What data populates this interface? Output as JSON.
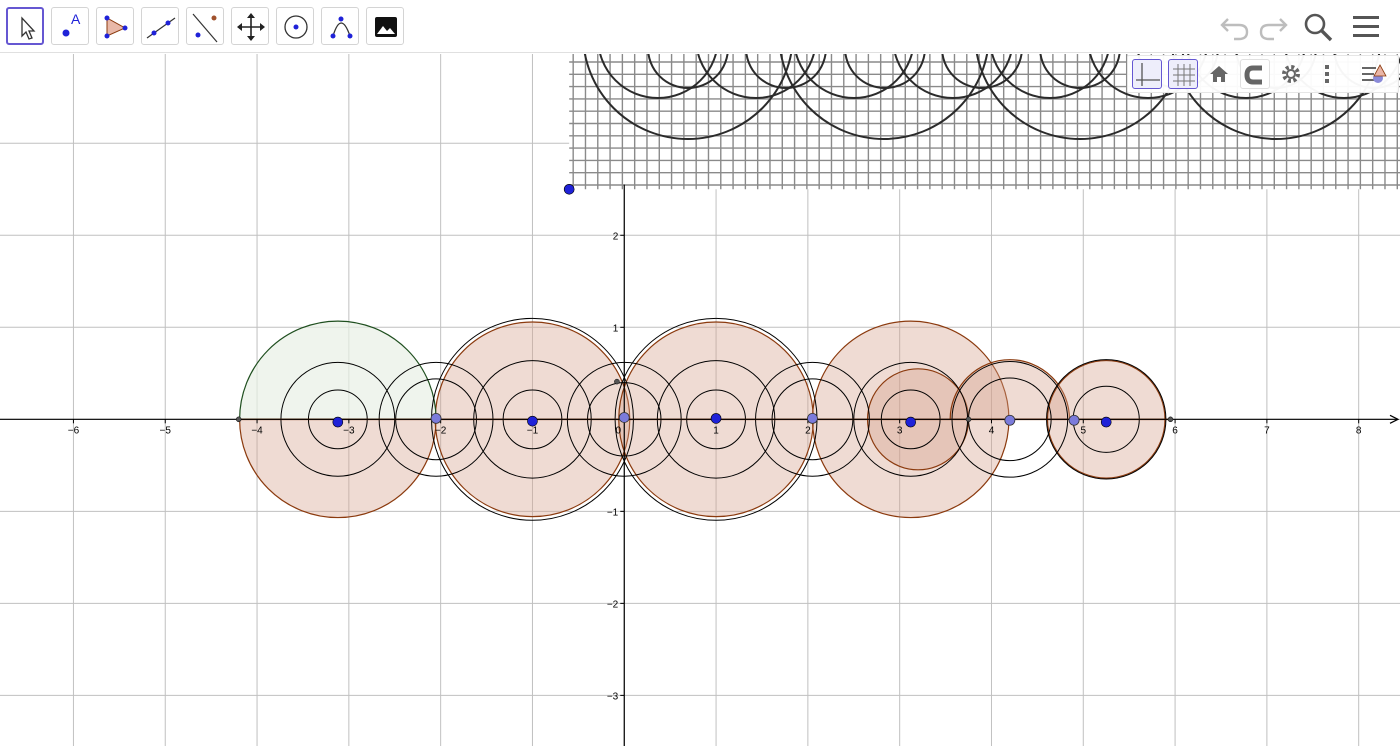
{
  "toolbar": {
    "tools": [
      {
        "name": "move-tool-icon",
        "active": true
      },
      {
        "name": "point-tool-icon",
        "label": "A"
      },
      {
        "name": "polygon-tool-icon"
      },
      {
        "name": "line-tool-icon"
      },
      {
        "name": "perpendicular-line-tool-icon"
      },
      {
        "name": "move-graphics-view-tool-icon"
      },
      {
        "name": "circle-tool-icon"
      },
      {
        "name": "conic-tool-icon"
      },
      {
        "name": "image-tool-icon"
      }
    ],
    "right": [
      "undo-icon",
      "redo-icon",
      "search-icon",
      "menu-icon"
    ]
  },
  "stylebar": {
    "buttons": [
      "axes-toggle-icon",
      "grid-toggle-icon",
      "standard-view-icon",
      "point-capturing-icon",
      "settings-icon",
      "more-icon",
      "style-panel-toggle-icon"
    ]
  },
  "graphics_view": {
    "x_tick_labels": [
      "−6",
      "−5",
      "−4",
      "−3",
      "−2",
      "−1",
      "0",
      "1",
      "2",
      "3",
      "4",
      "5",
      "6",
      "7",
      "8"
    ],
    "y_tick_labels": [
      "2",
      "1",
      "−1",
      "−2",
      "−3"
    ],
    "x_range": [
      -6.8,
      8.45
    ],
    "y_range": [
      -3.55,
      3.97
    ],
    "colors": {
      "axis": "#000000",
      "grid": "#c0c0c0",
      "circle_stroke": "#000000",
      "fill_brown": "#d6a08c",
      "stroke_brown": "#8b3a0e",
      "fill_green": "#e8f0e6",
      "stroke_green": "#1f4f1f",
      "point_blue": "#1f22d8",
      "point_light_blue": "#7b7bdb"
    }
  }
}
